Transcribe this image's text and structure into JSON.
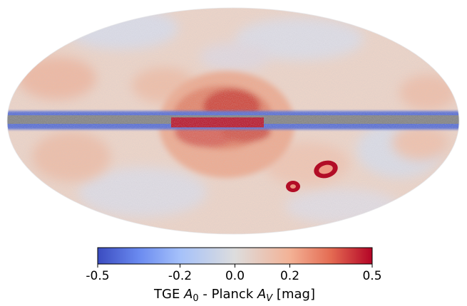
{
  "map": {
    "projection": "mollweide",
    "colormap": "coolwarm",
    "masked_color": "#808080",
    "background": "#ffffff"
  },
  "colorbar": {
    "vmin": -0.5,
    "vmax": 0.5,
    "ticks": [
      {
        "value": -0.5,
        "label": "-0.5"
      },
      {
        "value": -0.2,
        "label": "-0.2"
      },
      {
        "value": 0.0,
        "label": "0.0"
      },
      {
        "value": 0.2,
        "label": "0.2"
      },
      {
        "value": 0.5,
        "label": "0.5"
      }
    ],
    "label": {
      "prefix": "TGE ",
      "var1": "A",
      "sub1": "0",
      "middle": " - Planck ",
      "var2": "A",
      "sub2": "V",
      "suffix": " [mag]"
    },
    "colors": {
      "low": "#3b4cc0",
      "mid": "#dddddd",
      "high": "#b40426"
    }
  }
}
